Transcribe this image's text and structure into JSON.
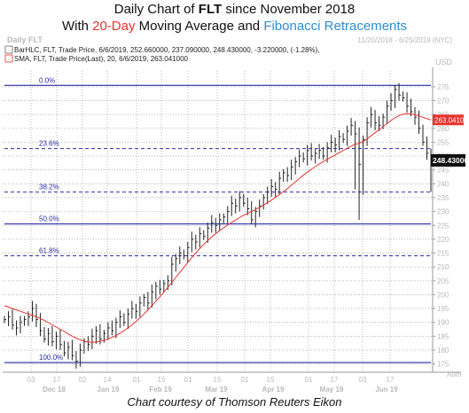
{
  "title": {
    "line1_prefix": "Daily Chart of ",
    "line1_ticker": "FLT",
    "line1_suffix": " since November 2018",
    "line2_prefix": "With ",
    "line2_sma": "20-Day",
    "line2_middle": " Moving Average and ",
    "line2_fib": "Fibonacci Retracements"
  },
  "header": {
    "label": "Daily FLT",
    "date_range": "11/20/2018 - 6/25/2019 (NYC)"
  },
  "legend": {
    "ohlc": "BarHLC, FLT, Trade Price, 6/6/2019, 252.660000, 237.090000, 248.430000, -3.220000, (-1.28%),",
    "sma": "SMA, FLT, Trade Price(Last), 20, 6/6/2019, 263.041000"
  },
  "axis": {
    "y_ticks": [
      "175",
      "180",
      "185",
      "190",
      "195",
      "200",
      "205",
      "210",
      "215",
      "220",
      "225",
      "230",
      "235",
      "240",
      "245",
      "250",
      "255",
      "260",
      "265",
      "270",
      "275"
    ],
    "unit": "USD",
    "auto": "Auto",
    "day_ticks": [
      "03",
      "17",
      "02",
      "14",
      "01",
      "15",
      "01",
      "15",
      "01",
      "15",
      "01",
      "17",
      "03",
      "17"
    ],
    "month_ticks": [
      "Dec 18",
      "Jan 19",
      "Feb 19",
      "Mar 19",
      "Apr 19",
      "May 19",
      "Jun 19"
    ]
  },
  "caption": "Chart courtesy of Thomson Reuters Eikon",
  "colors": {
    "bars": "#222222",
    "sma": "#e8322d",
    "fib": "#2a2aa8",
    "grid": "#8c8c8c",
    "sma_label_bg": "#e8322d",
    "price_label_bg": "#111111"
  },
  "chart_data": {
    "type": "line",
    "ylim": [
      172,
      282
    ],
    "y_ticks": [
      175,
      180,
      185,
      190,
      195,
      200,
      205,
      210,
      215,
      220,
      225,
      230,
      235,
      240,
      245,
      250,
      255,
      260,
      265,
      270,
      275
    ],
    "x_ticks": [
      "03",
      "17",
      "02",
      "14",
      "01",
      "15",
      "01",
      "15",
      "01",
      "15",
      "01",
      "17",
      "03",
      "17"
    ],
    "x_month_labels": [
      "Dec 18",
      "Jan 19",
      "Feb 19",
      "Mar 19",
      "Apr 19",
      "May 19",
      "Jun 19"
    ],
    "fibonacci": [
      {
        "label": "0.0%",
        "value": 275.5
      },
      {
        "label": "23.6%",
        "value": 252.7
      },
      {
        "label": "38.2%",
        "value": 237.0
      },
      {
        "label": "50.0%",
        "value": 225.5
      },
      {
        "label": "61.8%",
        "value": 214.0
      },
      {
        "label": "100.0%",
        "value": 175.5
      }
    ],
    "series": [
      {
        "name": "BarHLC, FLT, Trade Price",
        "type": "hlc_bars",
        "last_label": "248.430000",
        "close": [
          191,
          192,
          189,
          188,
          190,
          191,
          192,
          195,
          191,
          187,
          184,
          186,
          183,
          185,
          182,
          179,
          181,
          178,
          176,
          180,
          183,
          182,
          185,
          187,
          184,
          186,
          188,
          187,
          190,
          192,
          190,
          193,
          195,
          194,
          197,
          199,
          197,
          201,
          203,
          202,
          204,
          205,
          211,
          213,
          215,
          214,
          217,
          220,
          219,
          222,
          221,
          224,
          226,
          225,
          227,
          228,
          230,
          233,
          232,
          235,
          233,
          231,
          227,
          230,
          232,
          235,
          237,
          239,
          238,
          242,
          244,
          243,
          246,
          248,
          250,
          249,
          252,
          250,
          251,
          252,
          250,
          253,
          255,
          254,
          257,
          256,
          259,
          261,
          258,
          247,
          256,
          262,
          265,
          262,
          261,
          264,
          268,
          270,
          274,
          272,
          271,
          268,
          266,
          264,
          260,
          255,
          251,
          248
        ]
      },
      {
        "name": "SMA, FLT, Trade Price(Last), 20",
        "type": "sma",
        "last_label": "263.041000",
        "values": [
          196,
          195.5,
          195,
          194.5,
          194,
          193.5,
          193,
          192.5,
          192,
          191.4,
          190.7,
          189.9,
          189.1,
          188.3,
          187.5,
          186.7,
          185.8,
          185,
          184.3,
          183.7,
          183.2,
          182.9,
          182.8,
          182.9,
          183.1,
          183.5,
          184,
          184.6,
          185.3,
          186.1,
          187,
          188,
          189.1,
          190.3,
          191.6,
          193,
          194.4,
          196,
          197.6,
          199.2,
          200.9,
          202.6,
          204.4,
          206.2,
          208,
          209.8,
          211.6,
          213.3,
          215,
          216.6,
          218.1,
          219.5,
          220.8,
          222,
          223.1,
          224.1,
          225.1,
          226,
          226.9,
          227.8,
          228.6,
          229.3,
          230,
          230.7,
          231.5,
          232.3,
          233.2,
          234.1,
          235.1,
          236.1,
          237.2,
          238.3,
          239.5,
          240.7,
          241.9,
          243.1,
          244.2,
          245.2,
          246.2,
          247.1,
          248,
          248.8,
          249.6,
          250.4,
          251.2,
          252,
          252.8,
          253.6,
          254.2,
          254.6,
          255.3,
          256.2,
          257.3,
          258.4,
          259.5,
          260.6,
          261.7,
          262.8,
          263.8,
          264.6,
          265.1,
          265.3,
          265.2,
          264.9,
          264.5,
          264,
          263.5,
          263.04
        ]
      }
    ]
  }
}
